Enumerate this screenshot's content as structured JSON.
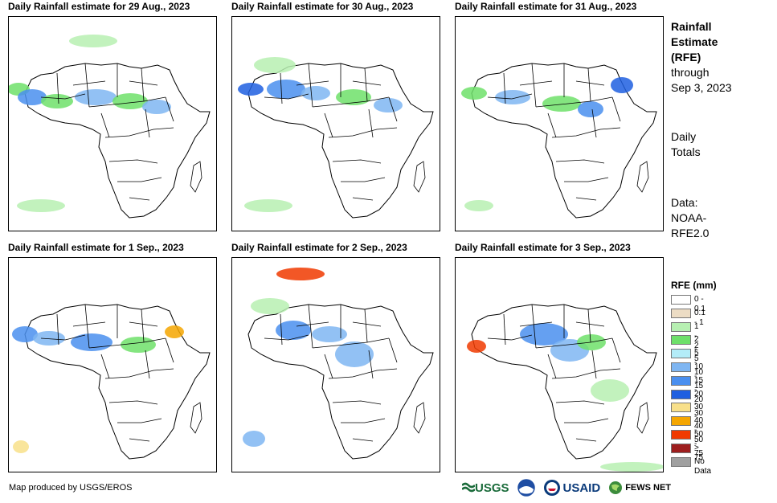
{
  "panels": [
    {
      "title": "Daily Rainfall estimate for 29 Aug., 2023"
    },
    {
      "title": "Daily Rainfall estimate for 30 Aug., 2023"
    },
    {
      "title": "Daily Rainfall estimate for 31 Aug., 2023"
    },
    {
      "title": "Daily Rainfall estimate for 1 Sep., 2023"
    },
    {
      "title": "Daily Rainfall estimate for 2 Sep., 2023"
    },
    {
      "title": "Daily Rainfall estimate for 3 Sep., 2023"
    }
  ],
  "sidebar": {
    "title_line1": "Rainfall",
    "title_line2": "Estimate",
    "title_line3": "(RFE)",
    "through_line1": "through",
    "through_line2": "Sep 3, 2023",
    "daily_line1": "Daily",
    "daily_line2": "Totals",
    "data_line1": "Data:",
    "data_line2": "NOAA-",
    "data_line3": "RFE2.0"
  },
  "legend": {
    "title": "RFE (mm)",
    "items": [
      {
        "label": "0 - 0.1",
        "color": "#ffffff"
      },
      {
        "label": "0.1 - 1",
        "color": "#ecdcc4"
      },
      {
        "label": "1 - 2",
        "color": "#b7f0b2"
      },
      {
        "label": "2 - 5",
        "color": "#6ee06a"
      },
      {
        "label": "5 - 10",
        "color": "#b3ecf8"
      },
      {
        "label": "10 - 15",
        "color": "#7fb6f2"
      },
      {
        "label": "15 - 20",
        "color": "#4a8fef"
      },
      {
        "label": "20 - 30",
        "color": "#1f5fe0"
      },
      {
        "label": "30 - 40",
        "color": "#f8e08a"
      },
      {
        "label": "40 - 50",
        "color": "#f5a600"
      },
      {
        "label": "50 - 75",
        "color": "#f03a00"
      },
      {
        "label": "> 75",
        "color": "#9e1e1e"
      },
      {
        "label": "No Data",
        "color": "#a0a0a0"
      }
    ]
  },
  "footer": {
    "credit": "Map produced by USGS/EROS",
    "logo_usgs": "USGS",
    "logo_usaid": "USAID",
    "logo_fews": "FEWS NET"
  }
}
